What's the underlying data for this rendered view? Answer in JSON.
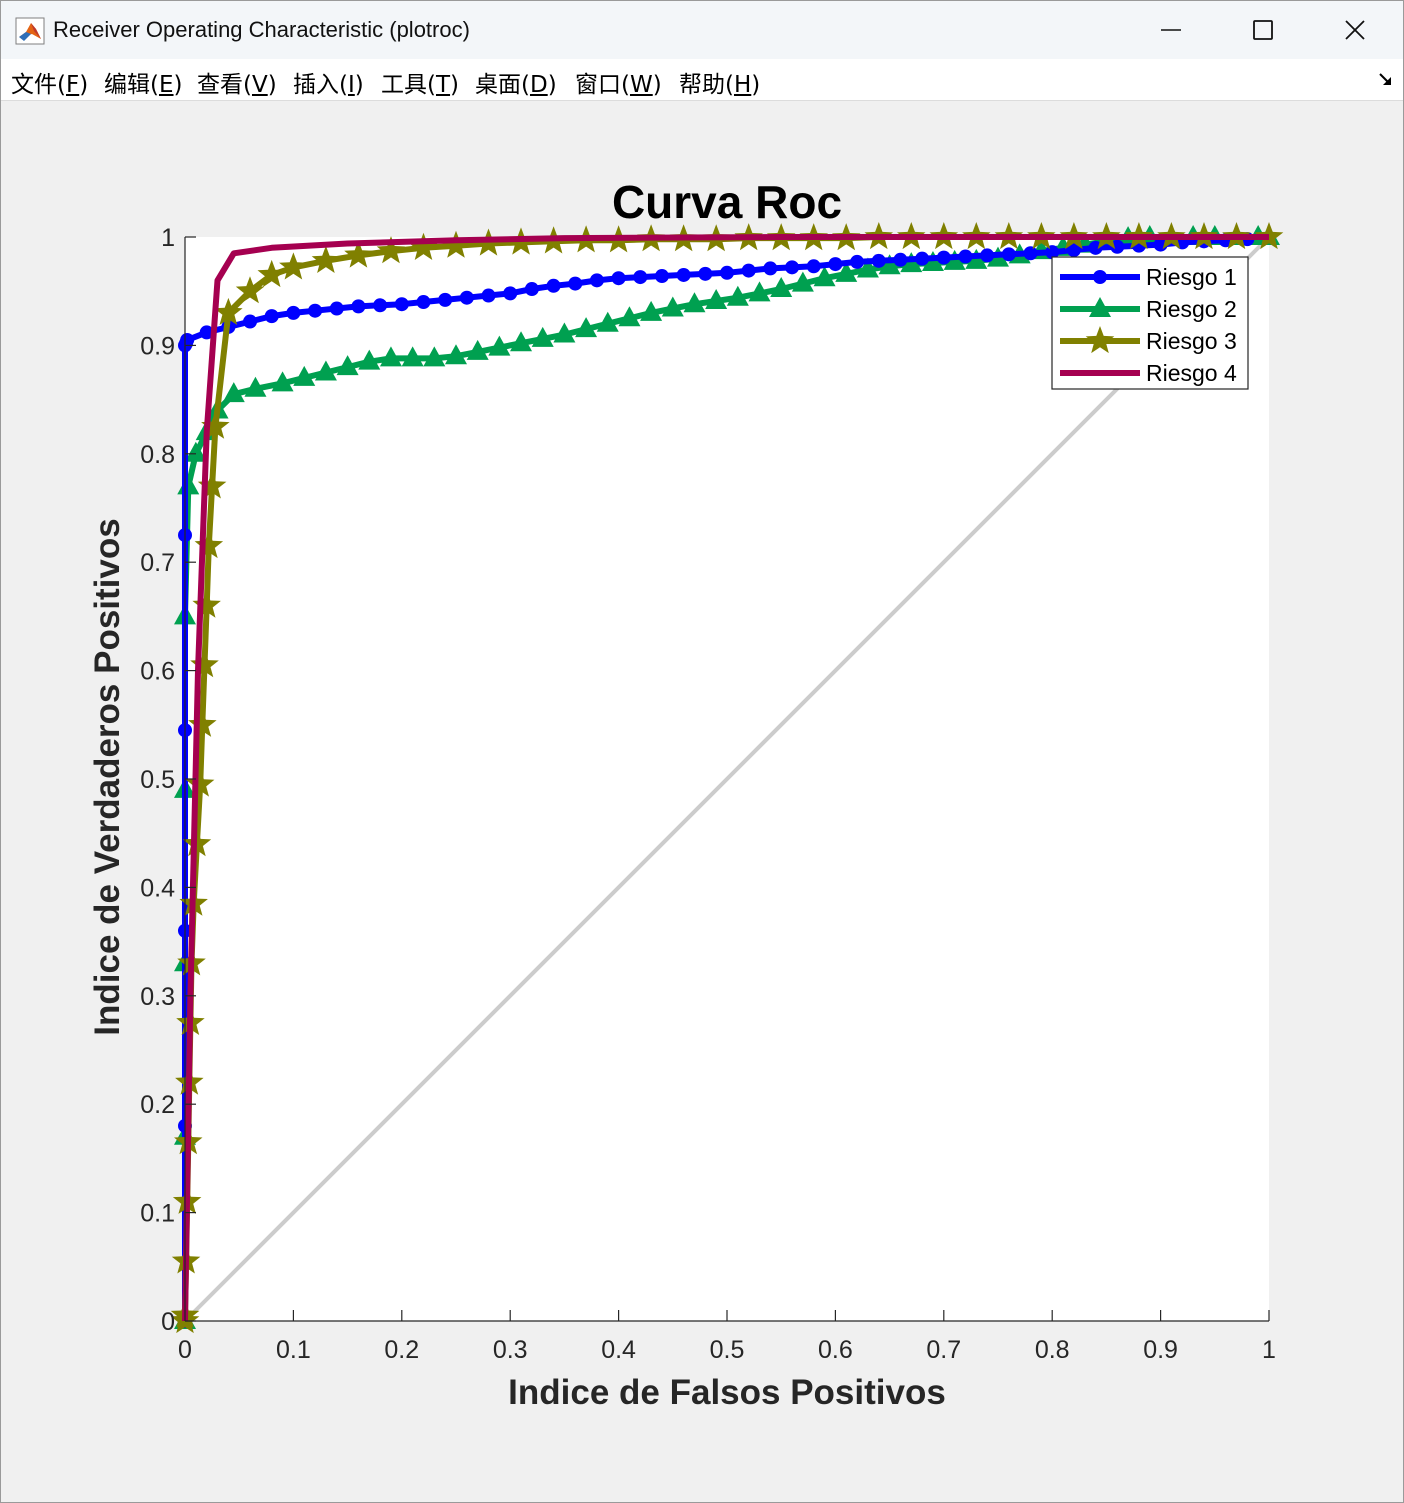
{
  "window": {
    "title": "Receiver Operating Characteristic (plotroc)"
  },
  "menu": {
    "file": {
      "pre": "文件(",
      "key": "F",
      "post": ")"
    },
    "edit": {
      "pre": "编辑(",
      "key": "E",
      "post": ")"
    },
    "view": {
      "pre": "查看(",
      "key": "V",
      "post": ")"
    },
    "insert": {
      "pre": "插入(",
      "key": "I",
      "post": ")"
    },
    "tools": {
      "pre": "工具(",
      "key": "T",
      "post": ")"
    },
    "desktop": {
      "pre": "桌面(",
      "key": "D",
      "post": ")"
    },
    "window": {
      "pre": "窗口(",
      "key": "W",
      "post": ")"
    },
    "help": {
      "pre": "帮助(",
      "key": "H",
      "post": ")"
    }
  },
  "chart_data": {
    "type": "line",
    "title": "Curva Roc",
    "xlabel": "Indice de Falsos Positivos",
    "ylabel": "Indice de Verdaderos Positivos",
    "xlim": [
      0,
      1
    ],
    "ylim": [
      0,
      1
    ],
    "xticks": [
      "0",
      "0.1",
      "0.2",
      "0.3",
      "0.4",
      "0.5",
      "0.6",
      "0.7",
      "0.8",
      "0.9",
      "1"
    ],
    "yticks": [
      "0",
      "0.1",
      "0.2",
      "0.3",
      "0.4",
      "0.5",
      "0.6",
      "0.7",
      "0.8",
      "0.9",
      "1"
    ],
    "legend_position": "top-right",
    "reference_line": {
      "x": [
        0,
        1
      ],
      "y": [
        0,
        1
      ],
      "color": "#cccccc"
    },
    "series": [
      {
        "name": "Riesgo 1",
        "color": "#0000ff",
        "marker": "circle",
        "x": [
          0,
          0,
          0,
          0,
          0,
          0,
          0.001,
          0.002,
          0.02,
          0.04,
          0.06,
          0.08,
          0.1,
          0.12,
          0.14,
          0.16,
          0.18,
          0.2,
          0.22,
          0.24,
          0.26,
          0.28,
          0.3,
          0.32,
          0.34,
          0.36,
          0.38,
          0.4,
          0.42,
          0.44,
          0.46,
          0.48,
          0.5,
          0.52,
          0.54,
          0.56,
          0.58,
          0.6,
          0.62,
          0.64,
          0.66,
          0.68,
          0.7,
          0.72,
          0.74,
          0.76,
          0.78,
          0.8,
          0.82,
          0.84,
          0.86,
          0.88,
          0.9,
          0.92,
          0.94,
          0.96,
          0.98
        ],
        "y": [
          0,
          0.18,
          0.36,
          0.545,
          0.725,
          0.9,
          0.902,
          0.905,
          0.912,
          0.917,
          0.922,
          0.927,
          0.93,
          0.932,
          0.934,
          0.936,
          0.937,
          0.938,
          0.94,
          0.942,
          0.944,
          0.946,
          0.948,
          0.952,
          0.955,
          0.957,
          0.96,
          0.962,
          0.963,
          0.964,
          0.965,
          0.966,
          0.967,
          0.969,
          0.971,
          0.972,
          0.973,
          0.975,
          0.977,
          0.978,
          0.979,
          0.98,
          0.981,
          0.982,
          0.983,
          0.984,
          0.985,
          0.986,
          0.988,
          0.99,
          0.991,
          0.992,
          0.993,
          0.995,
          0.996,
          0.997,
          0.998
        ]
      },
      {
        "name": "Riesgo 2",
        "color": "#00a050",
        "marker": "triangle",
        "x": [
          0,
          0,
          0,
          0,
          0,
          0.003,
          0.01,
          0.02,
          0.03,
          0.045,
          0.065,
          0.09,
          0.11,
          0.13,
          0.15,
          0.17,
          0.19,
          0.21,
          0.23,
          0.25,
          0.27,
          0.29,
          0.31,
          0.33,
          0.35,
          0.37,
          0.39,
          0.41,
          0.43,
          0.45,
          0.47,
          0.49,
          0.51,
          0.53,
          0.55,
          0.57,
          0.59,
          0.61,
          0.63,
          0.65,
          0.67,
          0.69,
          0.71,
          0.73,
          0.75,
          0.77,
          0.79,
          0.81,
          0.83,
          0.85,
          0.87,
          0.89,
          0.91,
          0.93,
          0.95,
          0.97,
          0.99,
          1.0
        ],
        "y": [
          0,
          0.17,
          0.33,
          0.49,
          0.65,
          0.77,
          0.8,
          0.82,
          0.84,
          0.855,
          0.86,
          0.865,
          0.87,
          0.875,
          0.88,
          0.885,
          0.888,
          0.888,
          0.888,
          0.89,
          0.894,
          0.898,
          0.902,
          0.906,
          0.91,
          0.915,
          0.92,
          0.925,
          0.93,
          0.934,
          0.938,
          0.941,
          0.944,
          0.948,
          0.952,
          0.957,
          0.962,
          0.966,
          0.97,
          0.973,
          0.975,
          0.976,
          0.977,
          0.978,
          0.98,
          0.983,
          0.987,
          0.99,
          0.993,
          0.996,
          0.999,
          1.0,
          1.0,
          1.0,
          1.0,
          1.0,
          1.0,
          1.0
        ]
      },
      {
        "name": "Riesgo 3",
        "color": "#808000",
        "marker": "star",
        "x": [
          0,
          0,
          0.001,
          0.002,
          0.003,
          0.004,
          0.005,
          0.006,
          0.008,
          0.011,
          0.014,
          0.016,
          0.018,
          0.02,
          0.022,
          0.025,
          0.028,
          0.04,
          0.06,
          0.08,
          0.1,
          0.13,
          0.16,
          0.19,
          0.22,
          0.25,
          0.28,
          0.31,
          0.34,
          0.37,
          0.4,
          0.43,
          0.46,
          0.49,
          0.52,
          0.55,
          0.58,
          0.61,
          0.64,
          0.67,
          0.7,
          0.73,
          0.76,
          0.79,
          0.82,
          0.85,
          0.88,
          0.91,
          0.94,
          0.97,
          1.0
        ],
        "y": [
          0,
          0.005,
          0.055,
          0.11,
          0.165,
          0.22,
          0.275,
          0.33,
          0.385,
          0.44,
          0.495,
          0.55,
          0.605,
          0.66,
          0.715,
          0.77,
          0.825,
          0.93,
          0.95,
          0.965,
          0.972,
          0.978,
          0.983,
          0.987,
          0.99,
          0.992,
          0.994,
          0.995,
          0.996,
          0.997,
          0.997,
          0.998,
          0.998,
          0.998,
          0.999,
          0.999,
          0.999,
          0.999,
          1.0,
          1.0,
          1.0,
          1.0,
          1.0,
          1.0,
          1.0,
          1.0,
          1.0,
          1.0,
          1.0,
          1.0,
          1.0
        ]
      },
      {
        "name": "Riesgo 4",
        "color": "#a50050",
        "marker": "none",
        "x": [
          0,
          0.005,
          0.012,
          0.02,
          0.03,
          0.045,
          0.08,
          0.15,
          0.25,
          0.35,
          0.55,
          0.8,
          1.0
        ],
        "y": [
          0,
          0.3,
          0.6,
          0.82,
          0.96,
          0.985,
          0.99,
          0.994,
          0.997,
          0.999,
          1.0,
          1.0,
          1.0
        ]
      }
    ]
  }
}
